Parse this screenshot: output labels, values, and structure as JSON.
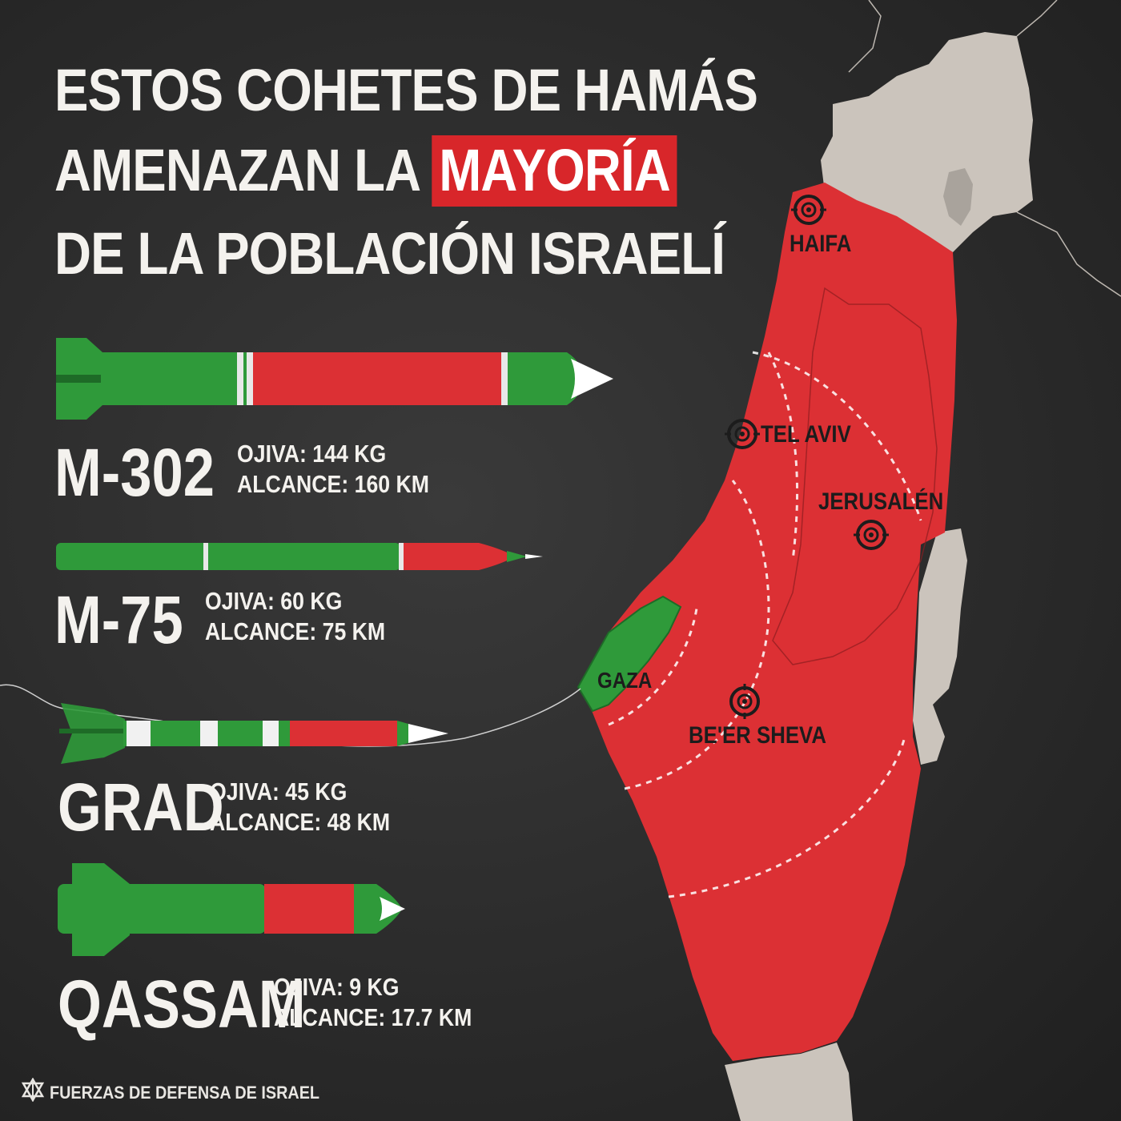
{
  "title": {
    "line1": "ESTOS COHETES DE HAMÁS",
    "line2_pre": "AMENAZAN LA ",
    "line2_highlight": "MAYORÍA",
    "line3": "DE LA POBLACIÓN ISRAELÍ"
  },
  "rockets": [
    {
      "name": "M-302",
      "warhead": "OJIVA: 144 KG",
      "range": "ALCANCE: 160 KM"
    },
    {
      "name": "M-75",
      "warhead": "OJIVA: 60 KG",
      "range": "ALCANCE: 75 KM"
    },
    {
      "name": "GRAD",
      "warhead": "OJIVA: 45 KG",
      "range": "ALCANCE: 48 KM"
    },
    {
      "name": "QASSAM",
      "warhead": "OJIVA: 9 KG",
      "range": "ALCANCE: 17.7 KM"
    }
  ],
  "map": {
    "cities": [
      "HAIFA",
      "TEL AVIV",
      "JERUSALÉN",
      "BE'ER SHEVA"
    ],
    "gaza_label": "GAZA"
  },
  "footer": "FUERZAS DE DEFENSA DE ISRAEL",
  "colors": {
    "background": "#2b2b2b",
    "red": "#d8262a",
    "green": "#2f9a3a",
    "land": "#cbc4bc",
    "text": "#f4f2ee"
  },
  "icons": [
    "target-icon",
    "idf-logo"
  ]
}
